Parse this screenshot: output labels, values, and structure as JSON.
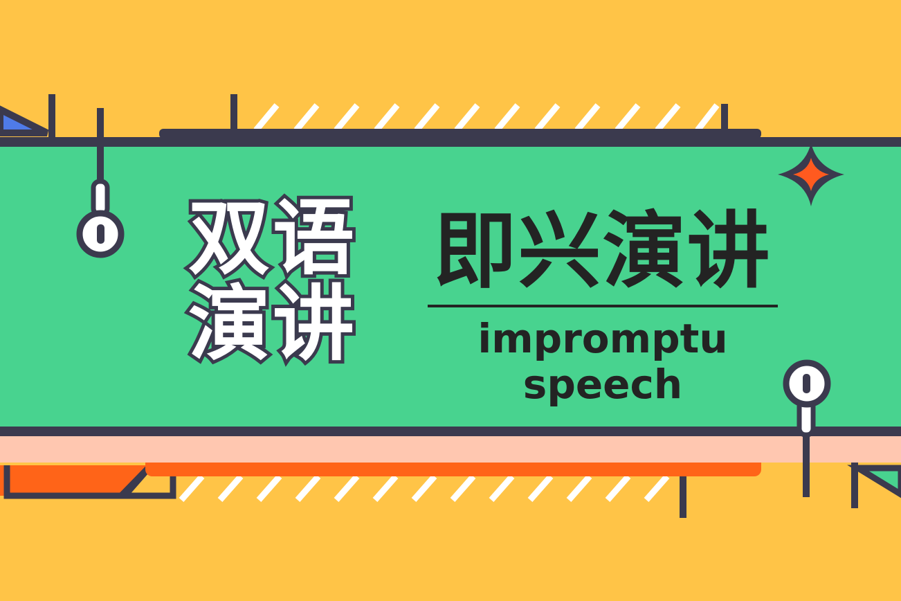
{
  "title_left": {
    "line1": "双语",
    "line2": "演讲"
  },
  "title_right": "即兴演讲",
  "subtitle": {
    "line1": "impromptu",
    "line2": "speech"
  },
  "colors": {
    "background": "#FFC447",
    "banner": "#48D38F",
    "outline": "#3B3A4E",
    "accent_orange": "#FF6418",
    "accent_blue": "#4F7BE8",
    "pink": "#FFC7B0",
    "text_dark": "#232323",
    "text_light": "#FFFFFF"
  },
  "icons": [
    "pin-icon",
    "sparkle-icon",
    "hatch-pattern"
  ]
}
